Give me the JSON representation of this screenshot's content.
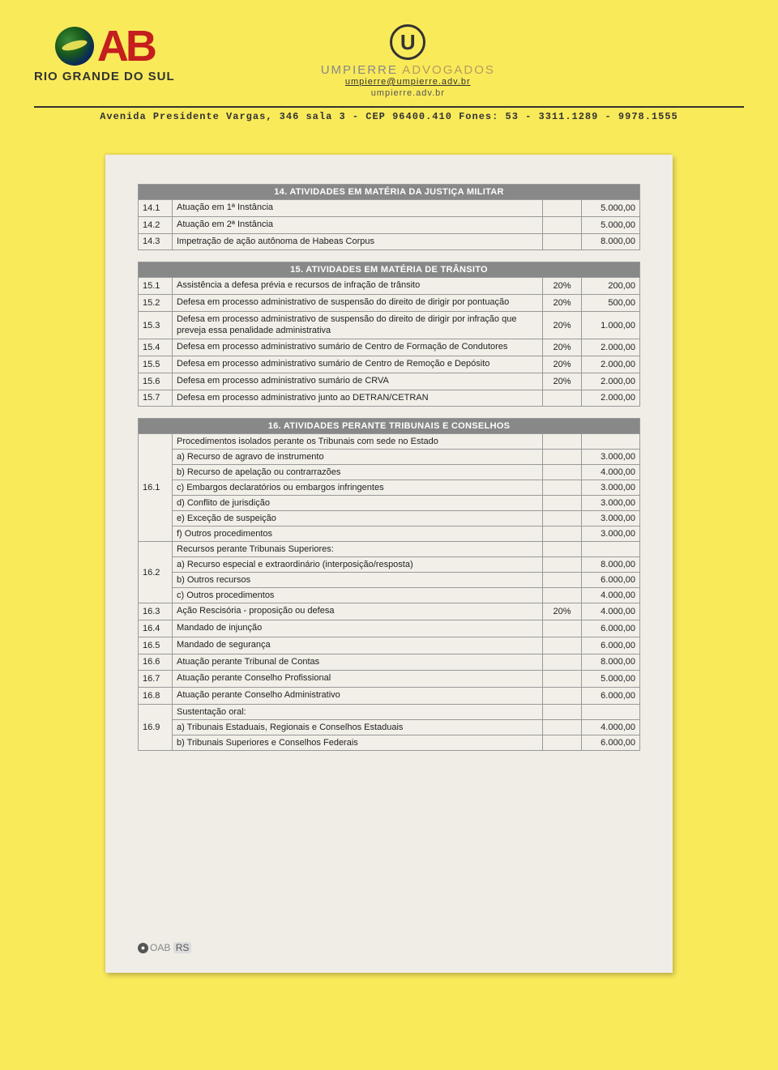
{
  "header": {
    "oab_sub": "RIO GRANDE DO SUL",
    "u_letter": "U",
    "umpierre": "UMPIERRE",
    "advogados": "ADVOGADOS",
    "email": "umpierre@umpierre.adv.br",
    "website": "umpierre.adv.br",
    "address": "Avenida Presidente Vargas, 346 sala 3 - CEP 96400.410 Fones: 53 - 3311.1289 - 9978.1555"
  },
  "section14": {
    "title": "14. ATIVIDADES EM MATÉRIA DA JUSTIÇA MILITAR",
    "rows": [
      {
        "code": "14.1",
        "desc": "Atuação em 1ª Instância",
        "pct": "",
        "val": "5.000,00"
      },
      {
        "code": "14.2",
        "desc": "Atuação em 2ª Instância",
        "pct": "",
        "val": "5.000,00"
      },
      {
        "code": "14.3",
        "desc": "Impetração de ação autônoma de Habeas Corpus",
        "pct": "",
        "val": "8.000,00"
      }
    ]
  },
  "section15": {
    "title": "15. ATIVIDADES EM MATÉRIA DE TRÂNSITO",
    "rows": [
      {
        "code": "15.1",
        "desc": "Assistência a defesa prévia e recursos de infração de trânsito",
        "pct": "20%",
        "val": "200,00"
      },
      {
        "code": "15.2",
        "desc": "Defesa em processo administrativo de suspensão do direito de dirigir por pontuação",
        "pct": "20%",
        "val": "500,00"
      },
      {
        "code": "15.3",
        "desc": "Defesa em processo administrativo de suspensão do direito de dirigir por infração que preveja essa penalidade administrativa",
        "pct": "20%",
        "val": "1.000,00"
      },
      {
        "code": "15.4",
        "desc": "Defesa em processo administrativo sumário de Centro de Formação de Condutores",
        "pct": "20%",
        "val": "2.000,00"
      },
      {
        "code": "15.5",
        "desc": "Defesa em processo administrativo sumário de Centro de Remoção e Depósito",
        "pct": "20%",
        "val": "2.000,00"
      },
      {
        "code": "15.6",
        "desc": "Defesa em processo administrativo sumário de CRVA",
        "pct": "20%",
        "val": "2.000,00"
      },
      {
        "code": "15.7",
        "desc": "Defesa em processo administrativo junto ao DETRAN/CETRAN",
        "pct": "",
        "val": "2.000,00"
      }
    ]
  },
  "section16": {
    "title": "16. ATIVIDADES PERANTE TRIBUNAIS E CONSELHOS",
    "r161_code": "16.1",
    "r161_intro": "Procedimentos isolados perante os Tribunais com sede no Estado",
    "r161_lines": [
      {
        "desc": "a) Recurso de agravo de instrumento",
        "val": "3.000,00"
      },
      {
        "desc": "b) Recurso de apelação ou contrarrazões",
        "val": "4.000,00"
      },
      {
        "desc": "c) Embargos declaratórios ou embargos infringentes",
        "val": "3.000,00"
      },
      {
        "desc": "d) Conflito de jurisdição",
        "val": "3.000,00"
      },
      {
        "desc": "e) Exceção de suspeição",
        "val": "3.000,00"
      },
      {
        "desc": "f) Outros procedimentos",
        "val": "3.000,00"
      }
    ],
    "r162_code": "16.2",
    "r162_intro": "Recursos perante Tribunais Superiores:",
    "r162_lines": [
      {
        "desc": "a) Recurso especial e extraordinário (interposição/resposta)",
        "val": "8.000,00"
      },
      {
        "desc": "b) Outros recursos",
        "val": "6.000,00"
      },
      {
        "desc": "c) Outros procedimentos",
        "val": "4.000,00"
      }
    ],
    "simple": [
      {
        "code": "16.3",
        "desc": "Ação Rescisória - proposição ou defesa",
        "pct": "20%",
        "val": "4.000,00"
      },
      {
        "code": "16.4",
        "desc": "Mandado de injunção",
        "pct": "",
        "val": "6.000,00"
      },
      {
        "code": "16.5",
        "desc": "Mandado de segurança",
        "pct": "",
        "val": "6.000,00"
      },
      {
        "code": "16.6",
        "desc": "Atuação perante Tribunal de Contas",
        "pct": "",
        "val": "8.000,00"
      },
      {
        "code": "16.7",
        "desc": "Atuação perante Conselho Profissional",
        "pct": "",
        "val": "5.000,00"
      },
      {
        "code": "16.8",
        "desc": "Atuação perante Conselho Administrativo",
        "pct": "",
        "val": "6.000,00"
      }
    ],
    "r169_code": "16.9",
    "r169_intro": "Sustentação oral:",
    "r169_lines": [
      {
        "desc": "a) Tribunais Estaduais, Regionais e Conselhos Estaduais",
        "val": "4.000,00"
      },
      {
        "desc": "b) Tribunais Superiores e Conselhos Federais",
        "val": "6.000,00"
      }
    ]
  },
  "footer": {
    "oab": "OAB",
    "rs": "RS"
  }
}
